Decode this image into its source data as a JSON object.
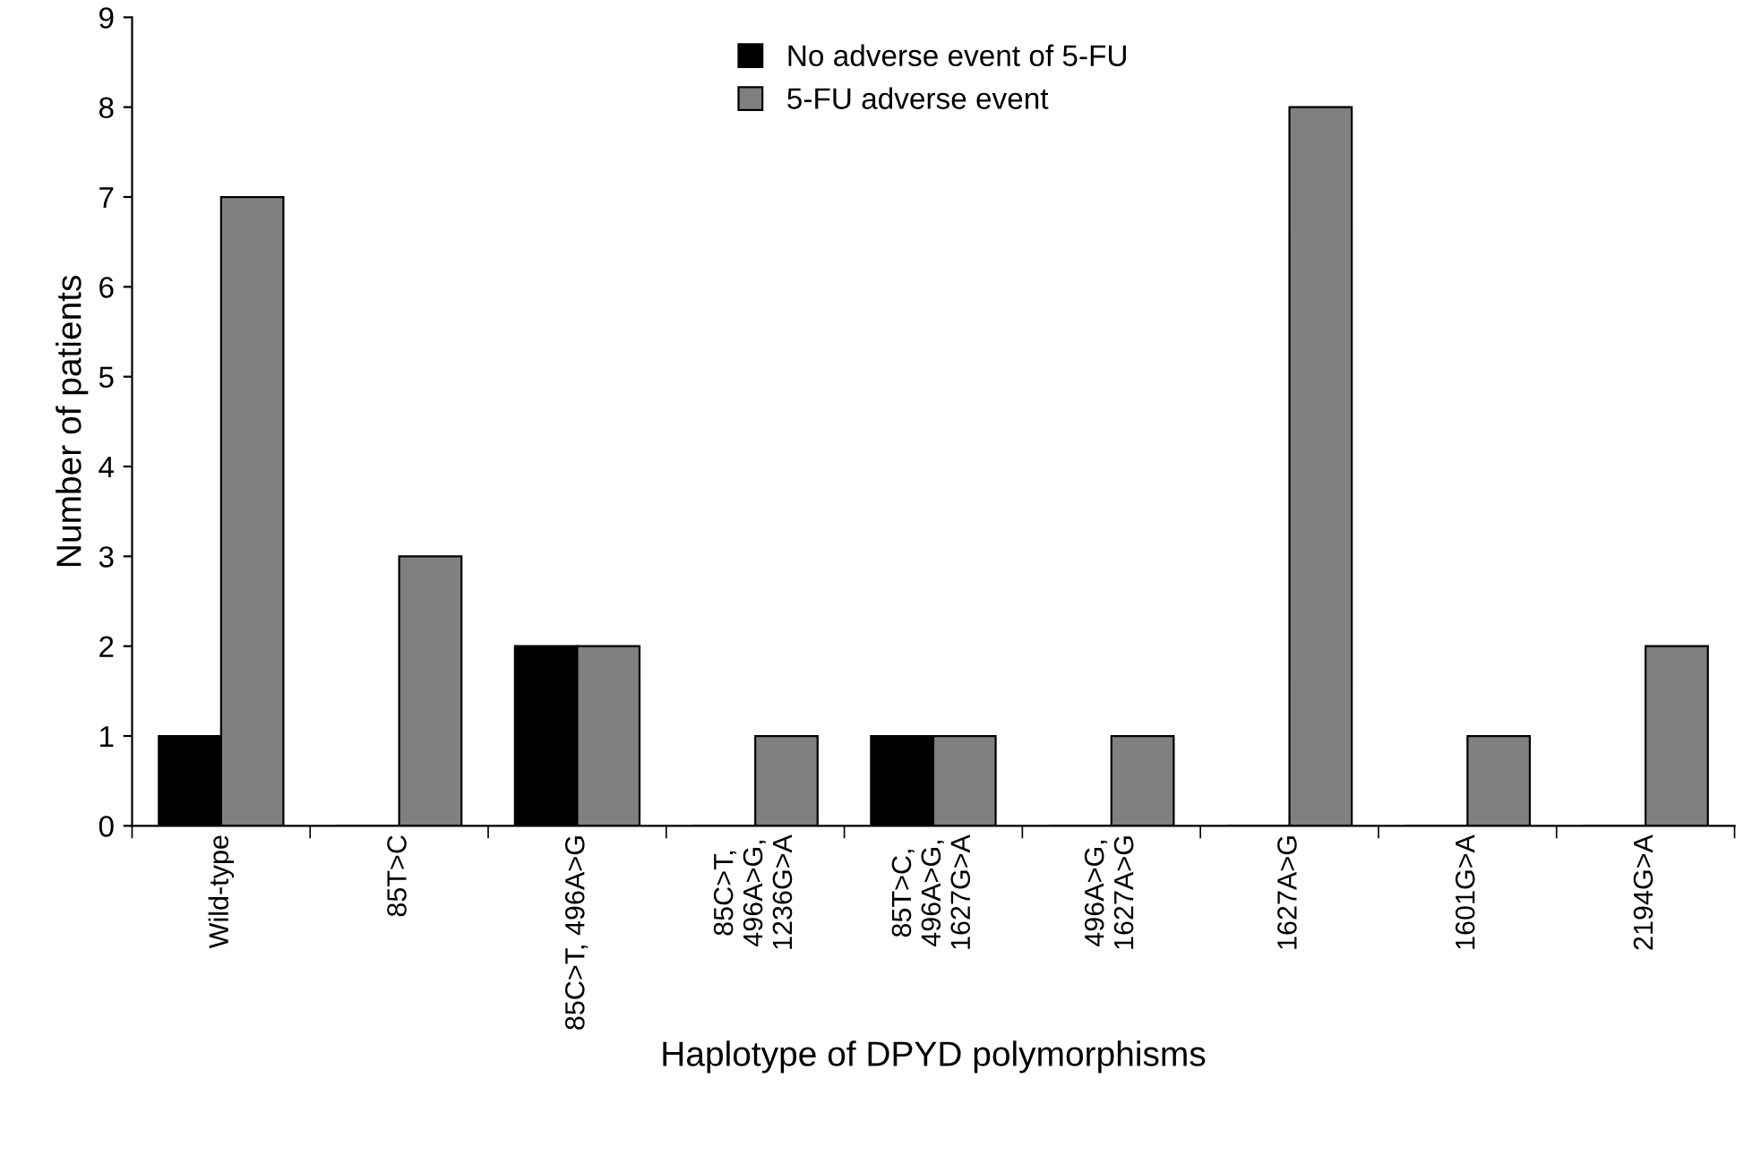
{
  "chart_data": {
    "type": "bar",
    "xlabel": "Haplotype of DPYD polymorphisms",
    "ylabel": "Number of patients",
    "categories": [
      "Wild-type",
      "85T>C",
      "85C>T, 496A>G",
      "85C>T,\n496A>G,\n1236G>A",
      "85T>C,\n496A>G,\n1627G>A",
      "496A>G,\n1627A>G",
      "1627A>G",
      "1601G>A",
      "2194G>A"
    ],
    "series": [
      {
        "name": "No adverse event of 5-FU",
        "color": "#000000",
        "values": [
          1,
          0,
          2,
          0,
          1,
          0,
          0,
          0,
          0
        ]
      },
      {
        "name": "5-FU adverse event",
        "color": "#808080",
        "values": [
          7,
          3,
          2,
          1,
          1,
          1,
          8,
          1,
          2
        ]
      }
    ],
    "ylim": [
      0,
      9
    ],
    "yticks": [
      0,
      1,
      2,
      3,
      4,
      5,
      6,
      7,
      8,
      9
    ],
    "grid": false,
    "legend": "top"
  }
}
